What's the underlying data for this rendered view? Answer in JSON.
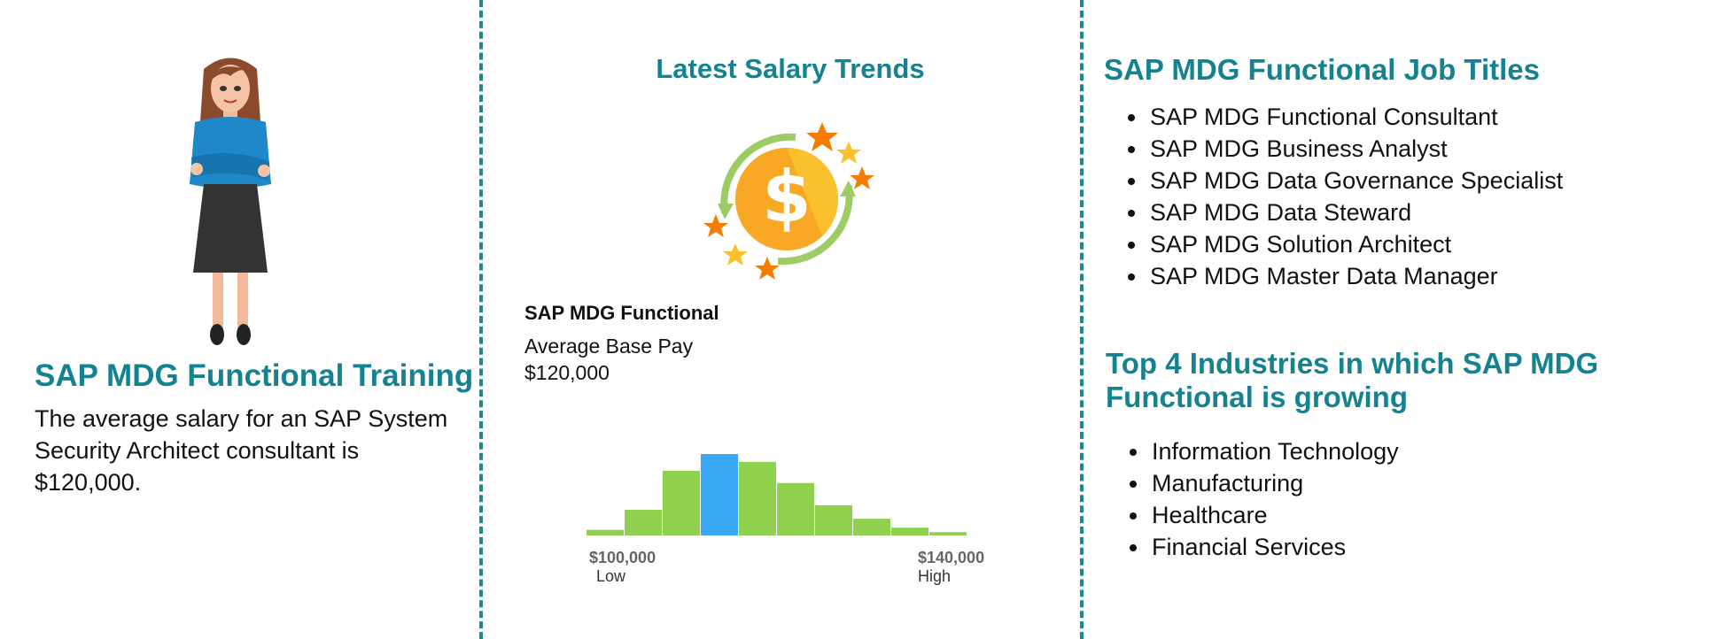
{
  "training": {
    "title": "SAP MDG Functional Training",
    "description": "The average salary for an SAP System Security Architect consultant is $120,000."
  },
  "salary": {
    "title": "Latest Salary Trends",
    "job_label": "SAP MDG Functional",
    "average_pay": "Average Base Pay $120,000",
    "low_value": "$100,000",
    "low_label": "Low",
    "high_value": "$140,000",
    "high_label": "High"
  },
  "chart_data": {
    "type": "bar",
    "values": [
      5,
      23,
      58,
      73,
      66,
      47,
      27,
      15,
      7,
      3
    ],
    "highlight_index": 3,
    "colors": {
      "bar": "#8fd14f",
      "highlight": "#3aa9f5"
    }
  },
  "job_titles": {
    "title": "SAP MDG Functional Job Titles",
    "items": [
      "SAP MDG Functional Consultant",
      "SAP MDG Business Analyst",
      "SAP MDG Data Governance Specialist",
      "SAP MDG Data Steward",
      "SAP MDG Solution Architect",
      "SAP MDG Master Data Manager"
    ]
  },
  "industries": {
    "title": "Top 4 Industries in which SAP MDG Functional is growing",
    "items": [
      "Information Technology",
      "Manufacturing",
      "Healthcare",
      "Financial Services"
    ]
  },
  "colors": {
    "accent": "#14828f",
    "divider": "#1a8a8a"
  }
}
